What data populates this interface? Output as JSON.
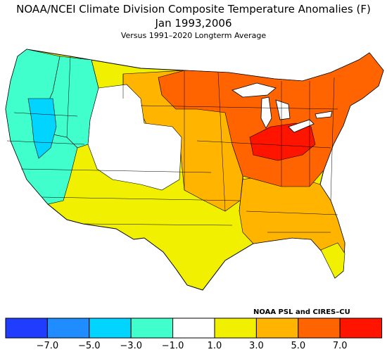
{
  "title": "NOAA/NCEI Climate Division Composite Temperature Anomalies (F)",
  "subtitle": "Jan  1993,2006",
  "note": "Versus 1991–2020 Longterm Average",
  "credit": "NOAA PSL and CIRES–CU",
  "legend": {
    "colors": [
      "#1f3cff",
      "#1f8cff",
      "#00d4ff",
      "#40ffcc",
      "#ffffff",
      "#f0f000",
      "#ffb400",
      "#ff6400",
      "#ff1400"
    ],
    "ticks": [
      "−7.0",
      "−5.0",
      "−3.0",
      "−1.0",
      "1.0",
      "3.0",
      "5.0",
      "7.0"
    ]
  },
  "regions": [
    {
      "name": "pacific-coast",
      "color": "#40ffcc"
    },
    {
      "name": "idaho-nevada",
      "color": "#00d4ff"
    },
    {
      "name": "north-rockies",
      "color": "#40ffcc"
    },
    {
      "name": "central-rockies",
      "color": "#ffffff"
    },
    {
      "name": "southwest",
      "color": "#f0f000"
    },
    {
      "name": "south-central",
      "color": "#f0f000"
    },
    {
      "name": "north-plains",
      "color": "#ffb400"
    },
    {
      "name": "great-lakes",
      "color": "#ff6400"
    },
    {
      "name": "ohio-valley",
      "color": "#ff1400"
    },
    {
      "name": "southeast",
      "color": "#ffb400"
    },
    {
      "name": "northeast",
      "color": "#ff6400"
    },
    {
      "name": "florida",
      "color": "#f0f000"
    }
  ]
}
